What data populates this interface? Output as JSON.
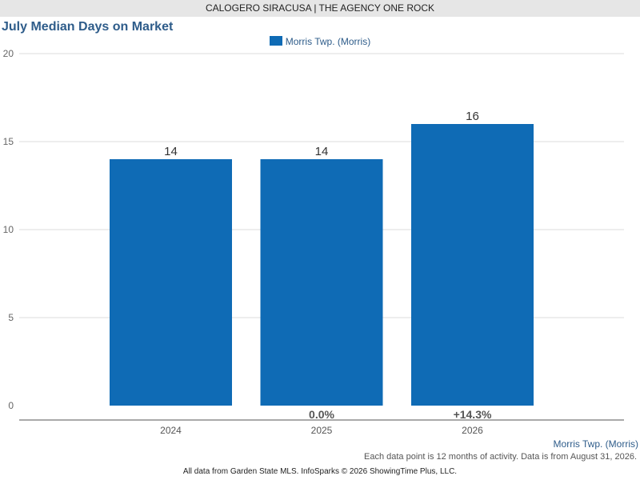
{
  "header": {
    "title": "CALOGERO SIRACUSA | THE AGENCY ONE ROCK"
  },
  "chart_data": {
    "type": "bar",
    "title": "July Median Days on Market",
    "categories": [
      "2024",
      "2025",
      "2026"
    ],
    "series": [
      {
        "name": "Morris Twp. (Morris)",
        "values": [
          14,
          14,
          16
        ]
      }
    ],
    "change_labels": [
      "",
      "0.0%",
      "+14.3%"
    ],
    "ylim": [
      0,
      20
    ],
    "yticks": [
      0,
      5,
      10,
      15,
      20
    ],
    "grid": true,
    "legend": "top-center",
    "color": "#0f6bb5"
  },
  "footer": {
    "series_label": "Morris Twp. (Morris)",
    "note": "Each data point is 12 months of activity. Data is from August 31, 2026.",
    "credit": "All data from Garden State MLS. InfoSparks © 2026 ShowingTime Plus, LLC."
  }
}
